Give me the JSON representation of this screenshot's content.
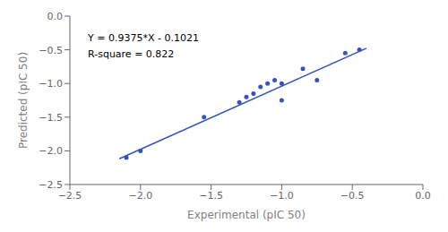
{
  "chart_data": {
    "type": "scatter",
    "xlabel": "Experimental (pIC 50)",
    "ylabel": "Predicted (pIC 50)",
    "xlim": [
      -2.5,
      0.0
    ],
    "ylim": [
      -2.5,
      0.0
    ],
    "xticks": [
      {
        "value": -2.5,
        "label": "−2.5"
      },
      {
        "value": -2.0,
        "label": "−2.0"
      },
      {
        "value": -1.5,
        "label": "−1.5"
      },
      {
        "value": -1.0,
        "label": "−1.0"
      },
      {
        "value": -0.5,
        "label": "−0.5"
      },
      {
        "value": 0.0,
        "label": "0.0"
      }
    ],
    "yticks": [
      {
        "value": -2.5,
        "label": "−2.5"
      },
      {
        "value": -2.0,
        "label": "−2.0"
      },
      {
        "value": -1.5,
        "label": "−1.5"
      },
      {
        "value": -1.0,
        "label": "−1.0"
      },
      {
        "value": -0.5,
        "label": "−0.5"
      },
      {
        "value": 0.0,
        "label": "0.0"
      }
    ],
    "grid": false,
    "annotations": [
      "Y = 0.9375*X - 0.1021",
      "R-square = 0.822"
    ],
    "series": [
      {
        "type": "line",
        "color": "#3355BB",
        "x": [
          -2.15,
          -0.4
        ],
        "values": [
          -2.117725,
          -0.4771
        ]
      },
      {
        "type": "scatter",
        "color": "#3355BB",
        "x": [
          -2.1,
          -2.0,
          -1.55,
          -1.3,
          -1.25,
          -1.2,
          -1.15,
          -1.1,
          -1.05,
          -1.0,
          -1.0,
          -0.85,
          -0.75,
          -0.55,
          -0.45
        ],
        "values": [
          -2.1,
          -2.0,
          -1.5,
          -1.28,
          -1.2,
          -1.15,
          -1.05,
          -1.0,
          -0.95,
          -1.0,
          -1.25,
          -0.78,
          -0.95,
          -0.55,
          -0.5
        ]
      }
    ]
  }
}
